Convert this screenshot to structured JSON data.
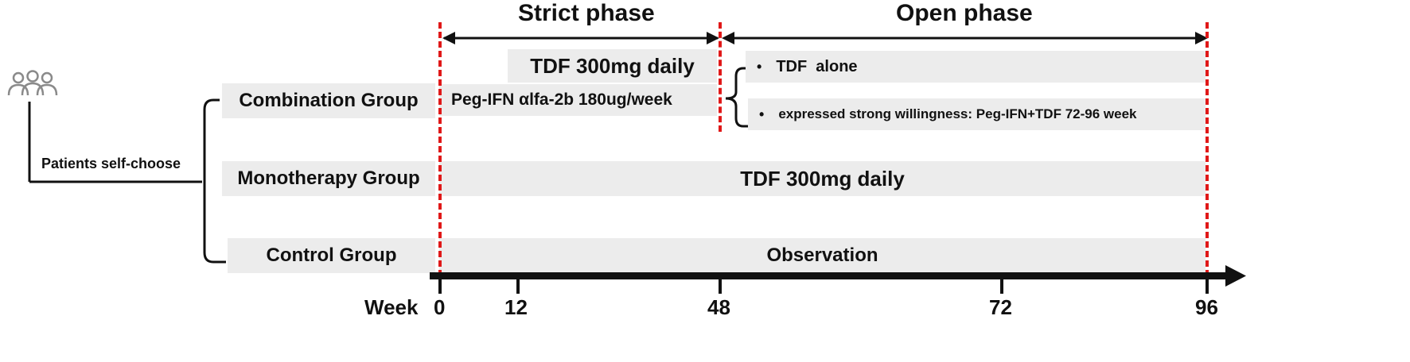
{
  "phases": {
    "strict": "Strict phase",
    "open": "Open phase"
  },
  "people_icon": "people-group-icon",
  "patients_label": "Patients self-choose",
  "groups": {
    "combination": "Combination Group",
    "monotherapy": "Monotherapy Group",
    "control": "Control Group"
  },
  "treatments": {
    "combination_tdf": "TDF 300mg daily",
    "combination_peg": "Peg-IFN αlfa-2b 180ug/week",
    "open_option_1": "TDF  alone",
    "open_option_2": "expressed strong willingness: Peg-IFN+TDF 72-96 week",
    "monotherapy": "TDF 300mg daily",
    "control": "Observation"
  },
  "bullet_symbol": "•",
  "axis": {
    "label": "Week",
    "ticks": [
      "0",
      "12",
      "48",
      "72",
      "96"
    ]
  },
  "colors": {
    "box_fill": "#ececec",
    "dashed_line": "#e01818",
    "axis": "#111111",
    "icon": "#8a8a8a"
  }
}
